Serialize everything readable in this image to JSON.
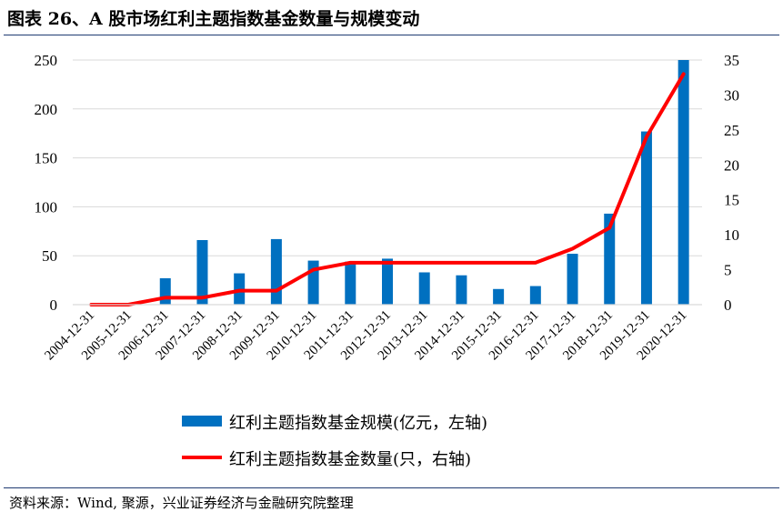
{
  "title": "图表 26、A 股市场红利主题指数基金数量与规模变动",
  "source": "资料来源：Wind, 聚源，兴业证券经济与金融研究院整理",
  "colors": {
    "bar": "#0070c0",
    "line": "#ff0000",
    "rule": "#1f3b72",
    "grid": "#d9d9d9"
  },
  "chart_data": {
    "type": "bar+line",
    "categories": [
      "2004-12-31",
      "2005-12-31",
      "2006-12-31",
      "2007-12-31",
      "2008-12-31",
      "2009-12-31",
      "2010-12-31",
      "2011-12-31",
      "2012-12-31",
      "2013-12-31",
      "2014-12-31",
      "2015-12-31",
      "2016-12-31",
      "2017-12-31",
      "2018-12-31",
      "2019-12-31",
      "2020-12-31"
    ],
    "series": [
      {
        "name": "红利主题指数基金规模(亿元，左轴)",
        "type": "bar",
        "axis": "left",
        "values": [
          0,
          0,
          27,
          66,
          32,
          67,
          45,
          44,
          47,
          33,
          30,
          16,
          19,
          52,
          93,
          177,
          250
        ]
      },
      {
        "name": "红利主题指数基金数量(只，右轴)",
        "type": "line",
        "axis": "right",
        "values": [
          0,
          0,
          1,
          1,
          2,
          2,
          5,
          6,
          6,
          6,
          6,
          6,
          6,
          8,
          11,
          24,
          33
        ]
      }
    ],
    "y_left": {
      "min": 0,
      "max": 250,
      "ticks": [
        0,
        50,
        100,
        150,
        200,
        250
      ]
    },
    "y_right": {
      "min": 0,
      "max": 35,
      "ticks": [
        0,
        5,
        10,
        15,
        20,
        25,
        30,
        35
      ]
    },
    "grid": true,
    "legend": "bottom"
  }
}
